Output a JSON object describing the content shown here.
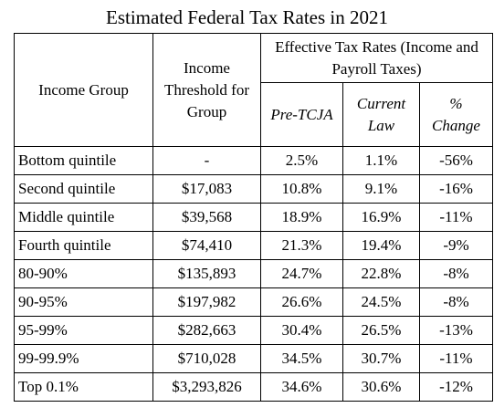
{
  "title": "Estimated Federal Tax Rates in 2021",
  "headers": {
    "income_group": "Income Group",
    "income_threshold": "Income Threshold for Group",
    "effective_rates": "Effective Tax Rates (Income and Payroll Taxes)",
    "pre_tcja": "Pre-TCJA",
    "current_law": "Current Law",
    "pct_change": "% Change"
  },
  "rows": [
    {
      "group": "Bottom quintile",
      "threshold": "-",
      "pre_tcja": "2.5%",
      "current_law": "1.1%",
      "change": "-56%"
    },
    {
      "group": "Second quintile",
      "threshold": "$17,083",
      "pre_tcja": "10.8%",
      "current_law": "9.1%",
      "change": "-16%"
    },
    {
      "group": "Middle quintile",
      "threshold": "$39,568",
      "pre_tcja": "18.9%",
      "current_law": "16.9%",
      "change": "-11%"
    },
    {
      "group": "Fourth quintile",
      "threshold": "$74,410",
      "pre_tcja": "21.3%",
      "current_law": "19.4%",
      "change": "-9%"
    },
    {
      "group": "80-90%",
      "threshold": "$135,893",
      "pre_tcja": "24.7%",
      "current_law": "22.8%",
      "change": "-8%"
    },
    {
      "group": "90-95%",
      "threshold": "$197,982",
      "pre_tcja": "26.6%",
      "current_law": "24.5%",
      "change": "-8%"
    },
    {
      "group": "95-99%",
      "threshold": "$282,663",
      "pre_tcja": "30.4%",
      "current_law": "26.5%",
      "change": "-13%"
    },
    {
      "group": "99-99.9%",
      "threshold": "$710,028",
      "pre_tcja": "34.5%",
      "current_law": "30.7%",
      "change": "-11%"
    },
    {
      "group": "Top 0.1%",
      "threshold": "$3,293,826",
      "pre_tcja": "34.6%",
      "current_law": "30.6%",
      "change": "-12%"
    }
  ]
}
